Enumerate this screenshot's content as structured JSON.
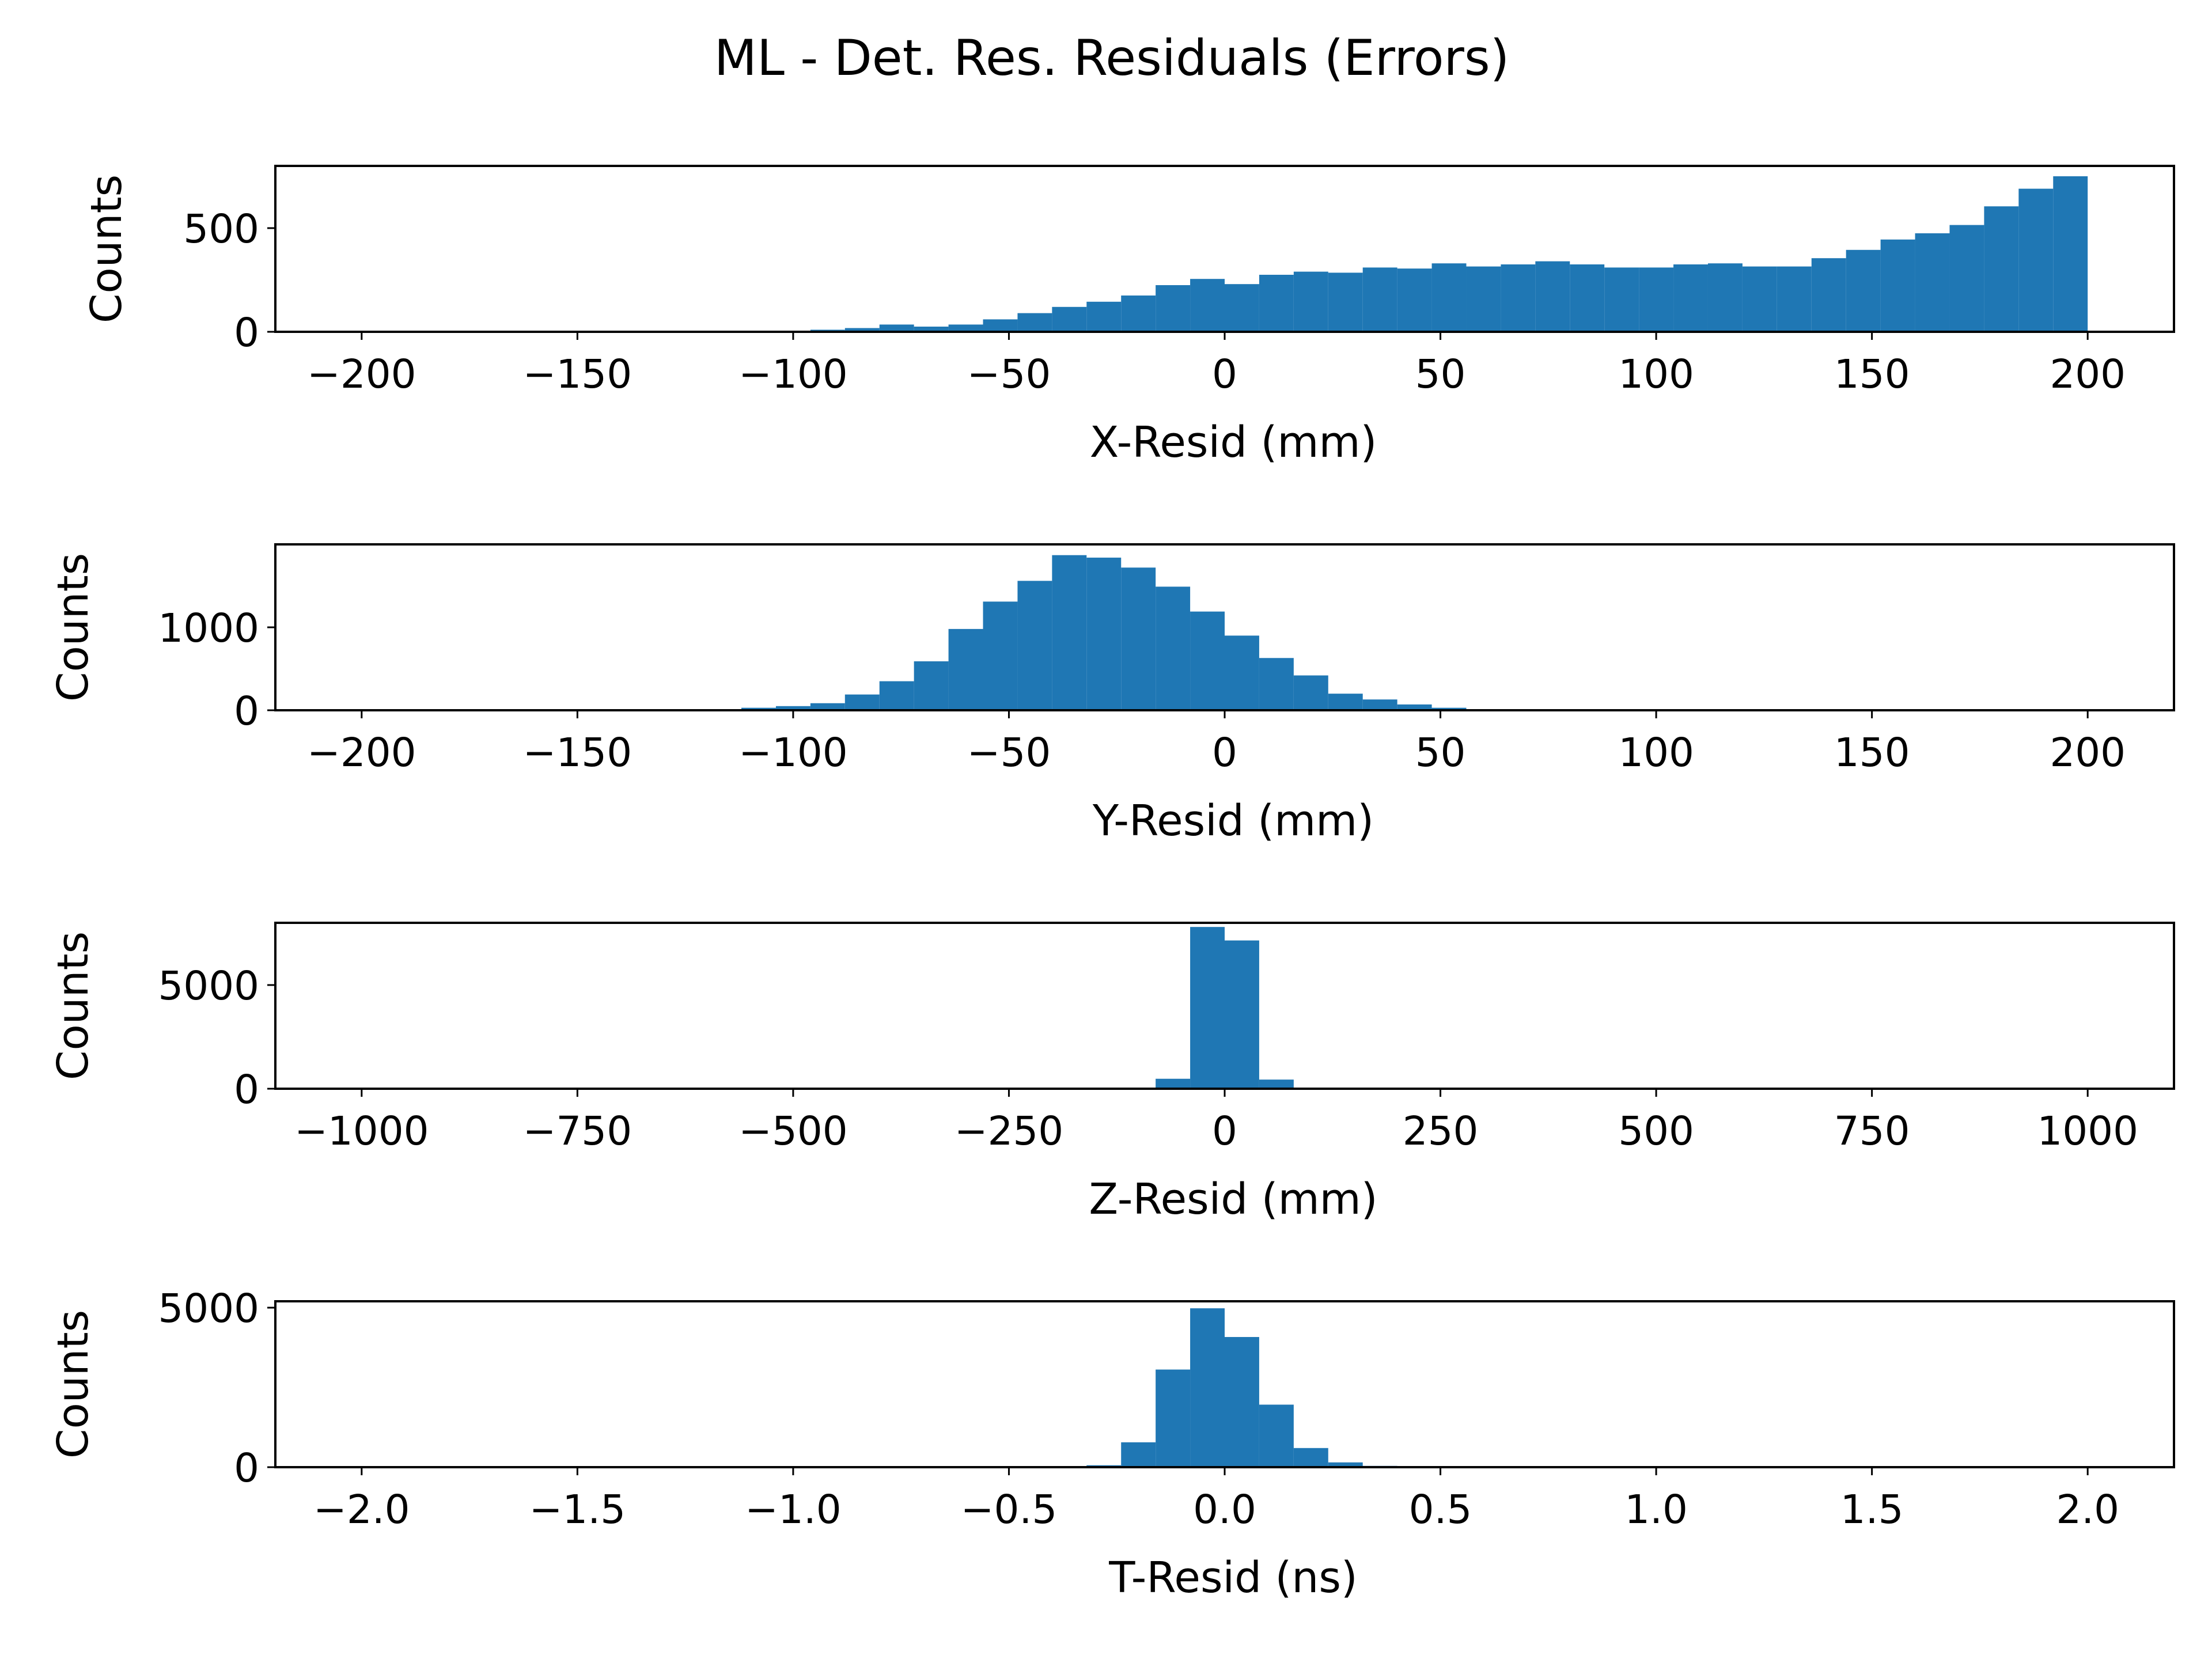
{
  "figure": {
    "title": "ML - Det. Res. Residuals (Errors)",
    "bar_color": "#1f77b4"
  },
  "chart_data": [
    {
      "type": "bar",
      "title": "",
      "xlabel": "X-Resid (mm)",
      "ylabel": "Counts",
      "xlim": [
        -220,
        220
      ],
      "ylim": [
        0,
        800
      ],
      "xticks": [
        -200,
        -150,
        -100,
        -50,
        0,
        50,
        100,
        150,
        200
      ],
      "xtick_labels": [
        "−200",
        "−150",
        "−100",
        "−50",
        "0",
        "50",
        "100",
        "150",
        "200"
      ],
      "yticks": [
        0,
        500
      ],
      "ytick_labels": [
        "0",
        "500"
      ],
      "bin_edges": [
        -200,
        -192,
        -184,
        -176,
        -168,
        -160,
        -152,
        -144,
        -136,
        -128,
        -120,
        -112,
        -104,
        -96,
        -88,
        -80,
        -72,
        -64,
        -56,
        -48,
        -40,
        -32,
        -24,
        -16,
        -8,
        0,
        8,
        16,
        24,
        32,
        40,
        48,
        56,
        64,
        72,
        80,
        88,
        96,
        104,
        112,
        120,
        128,
        136,
        144,
        152,
        160,
        168,
        176,
        184,
        192,
        200
      ],
      "values": [
        0,
        0,
        0,
        0,
        0,
        0,
        0,
        0,
        0,
        0,
        0,
        0,
        5,
        10,
        18,
        35,
        25,
        35,
        60,
        90,
        120,
        145,
        175,
        225,
        255,
        230,
        275,
        290,
        285,
        310,
        305,
        330,
        315,
        325,
        340,
        325,
        310,
        310,
        325,
        330,
        315,
        315,
        355,
        395,
        445,
        475,
        515,
        605,
        690,
        750
      ]
    },
    {
      "type": "bar",
      "title": "",
      "xlabel": "Y-Resid (mm)",
      "ylabel": "Counts",
      "xlim": [
        -220,
        220
      ],
      "ylim": [
        0,
        2000
      ],
      "xticks": [
        -200,
        -150,
        -100,
        -50,
        0,
        50,
        100,
        150,
        200
      ],
      "xtick_labels": [
        "−200",
        "−150",
        "−100",
        "−50",
        "0",
        "50",
        "100",
        "150",
        "200"
      ],
      "yticks": [
        0,
        1000
      ],
      "ytick_labels": [
        "0",
        "1000"
      ],
      "bin_edges": [
        -200,
        -192,
        -184,
        -176,
        -168,
        -160,
        -152,
        -144,
        -136,
        -128,
        -120,
        -112,
        -104,
        -96,
        -88,
        -80,
        -72,
        -64,
        -56,
        -48,
        -40,
        -32,
        -24,
        -16,
        -8,
        0,
        8,
        16,
        24,
        32,
        40,
        48,
        56,
        64,
        72,
        80,
        88,
        96,
        104,
        112,
        120,
        128,
        136,
        144,
        152,
        160,
        168,
        176,
        184,
        192,
        200
      ],
      "values": [
        0,
        0,
        0,
        0,
        0,
        0,
        0,
        0,
        0,
        0,
        10,
        30,
        50,
        85,
        190,
        350,
        590,
        980,
        1310,
        1560,
        1870,
        1840,
        1720,
        1490,
        1190,
        900,
        630,
        420,
        200,
        130,
        70,
        30,
        10,
        0,
        0,
        0,
        0,
        0,
        0,
        0,
        0,
        0,
        0,
        0,
        0,
        0,
        0,
        0,
        0,
        0
      ]
    },
    {
      "type": "bar",
      "title": "",
      "xlabel": "Z-Resid (mm)",
      "ylabel": "Counts",
      "xlim": [
        -1100,
        1100
      ],
      "ylim": [
        0,
        8000
      ],
      "xticks": [
        -1000,
        -750,
        -500,
        -250,
        0,
        250,
        500,
        750,
        1000
      ],
      "xtick_labels": [
        "−1000",
        "−750",
        "−500",
        "−250",
        "0",
        "250",
        "500",
        "750",
        "1000"
      ],
      "yticks": [
        0,
        5000
      ],
      "ytick_labels": [
        "0",
        "5000"
      ],
      "bin_edges": [
        -1000,
        -960,
        -920,
        -880,
        -840,
        -800,
        -760,
        -720,
        -680,
        -640,
        -600,
        -560,
        -520,
        -480,
        -440,
        -400,
        -360,
        -320,
        -280,
        -240,
        -200,
        -160,
        -120,
        -80,
        -40,
        0,
        40,
        80,
        120,
        160,
        200,
        240,
        280,
        320,
        360,
        400,
        440,
        480,
        520,
        560,
        600,
        640,
        680,
        720,
        760,
        800,
        840,
        880,
        920,
        960,
        1000
      ],
      "values": [
        0,
        0,
        0,
        0,
        0,
        0,
        0,
        0,
        0,
        0,
        0,
        0,
        0,
        0,
        0,
        0,
        0,
        0,
        0,
        0,
        0,
        0,
        0,
        480,
        7800,
        7150,
        440,
        0,
        0,
        0,
        0,
        0,
        0,
        0,
        0,
        0,
        0,
        0,
        0,
        0,
        0,
        0,
        0,
        0,
        0,
        0,
        0,
        0,
        0,
        0
      ]
    },
    {
      "type": "bar",
      "title": "",
      "xlabel": "T-Resid (ns)",
      "ylabel": "Counts",
      "xlim": [
        -2.2,
        2.2
      ],
      "ylim": [
        0,
        5200
      ],
      "xticks": [
        -2.0,
        -1.5,
        -1.0,
        -0.5,
        0.0,
        0.5,
        1.0,
        1.5,
        2.0
      ],
      "xtick_labels": [
        "−2.0",
        "−1.5",
        "−1.0",
        "−0.5",
        "0.0",
        "0.5",
        "1.0",
        "1.5",
        "2.0"
      ],
      "yticks": [
        0,
        5000
      ],
      "ytick_labels": [
        "0",
        "5000"
      ],
      "bin_edges": [
        -2.0,
        -1.92,
        -1.84,
        -1.76,
        -1.68,
        -1.6,
        -1.52,
        -1.44,
        -1.36,
        -1.28,
        -1.2,
        -1.12,
        -1.04,
        -0.96,
        -0.88,
        -0.8,
        -0.72,
        -0.64,
        -0.56,
        -0.48,
        -0.4,
        -0.32,
        -0.24,
        -0.16,
        -0.08,
        0.0,
        0.08,
        0.16,
        0.24,
        0.32,
        0.4,
        0.48,
        0.56,
        0.64,
        0.72,
        0.8,
        0.88,
        0.96,
        1.04,
        1.12,
        1.2,
        1.28,
        1.36,
        1.44,
        1.52,
        1.6,
        1.68,
        1.76,
        1.84,
        1.92,
        2.0
      ],
      "values": [
        0,
        0,
        0,
        0,
        0,
        0,
        0,
        0,
        0,
        0,
        0,
        0,
        0,
        0,
        0,
        0,
        0,
        0,
        0,
        0,
        0,
        60,
        780,
        3060,
        4980,
        4080,
        1960,
        600,
        150,
        40,
        0,
        0,
        0,
        0,
        0,
        0,
        0,
        0,
        0,
        0,
        0,
        0,
        0,
        0,
        0,
        0,
        0,
        0,
        0,
        0
      ]
    }
  ]
}
